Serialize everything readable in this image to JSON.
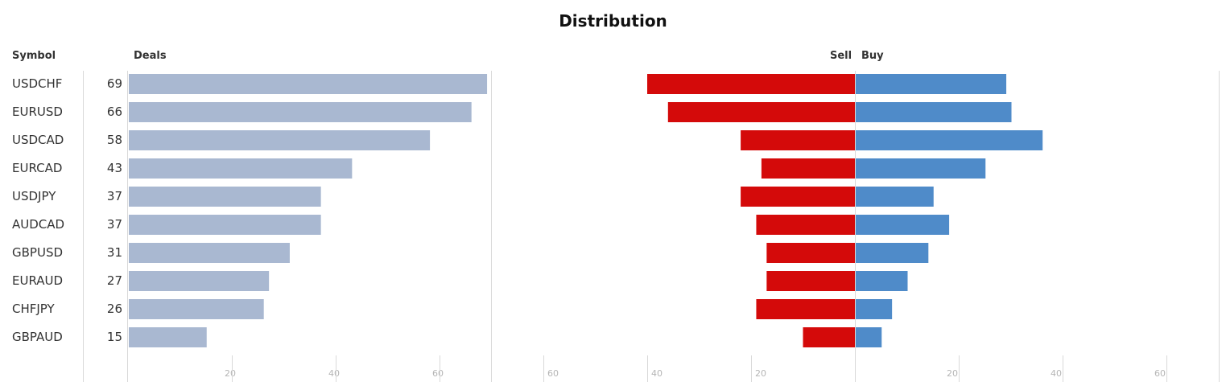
{
  "title": "Distribution",
  "headers": {
    "symbol": "Symbol",
    "deals": "Deals",
    "sell": "Sell",
    "buy": "Buy"
  },
  "colors": {
    "deals": "#a9b8d1",
    "sell": "#d40a0a",
    "buy": "#4f8bc9",
    "grid": "#d9d9d9",
    "tick": "#b5b5b5"
  },
  "chart_data": [
    {
      "type": "bar",
      "orientation": "horizontal",
      "ylabel": "Deals",
      "categories": [
        "USDCHF",
        "EURUSD",
        "USDCAD",
        "EURCAD",
        "USDJPY",
        "AUDCAD",
        "GBPUSD",
        "EURAUD",
        "CHFJPY",
        "GBPAUD"
      ],
      "values": [
        69,
        66,
        58,
        43,
        37,
        37,
        31,
        27,
        26,
        15
      ],
      "xlim": [
        0,
        70
      ],
      "ticks": [
        "20",
        "40",
        "60"
      ],
      "grid": true
    },
    {
      "type": "bar",
      "orientation": "horizontal",
      "diverging": true,
      "categories": [
        "USDCHF",
        "EURUSD",
        "USDCAD",
        "EURCAD",
        "USDJPY",
        "AUDCAD",
        "GBPUSD",
        "EURAUD",
        "CHFJPY",
        "GBPAUD"
      ],
      "series": [
        {
          "name": "Sell",
          "values": [
            40,
            36,
            22,
            18,
            22,
            19,
            17,
            17,
            19,
            10
          ]
        },
        {
          "name": "Buy",
          "values": [
            29,
            30,
            36,
            25,
            15,
            18,
            14,
            10,
            7,
            5
          ]
        }
      ],
      "xlim": [
        -70,
        70
      ],
      "sell_ticks": [
        "60",
        "40",
        "20"
      ],
      "buy_ticks": [
        "20",
        "40",
        "60"
      ],
      "grid": true
    }
  ]
}
